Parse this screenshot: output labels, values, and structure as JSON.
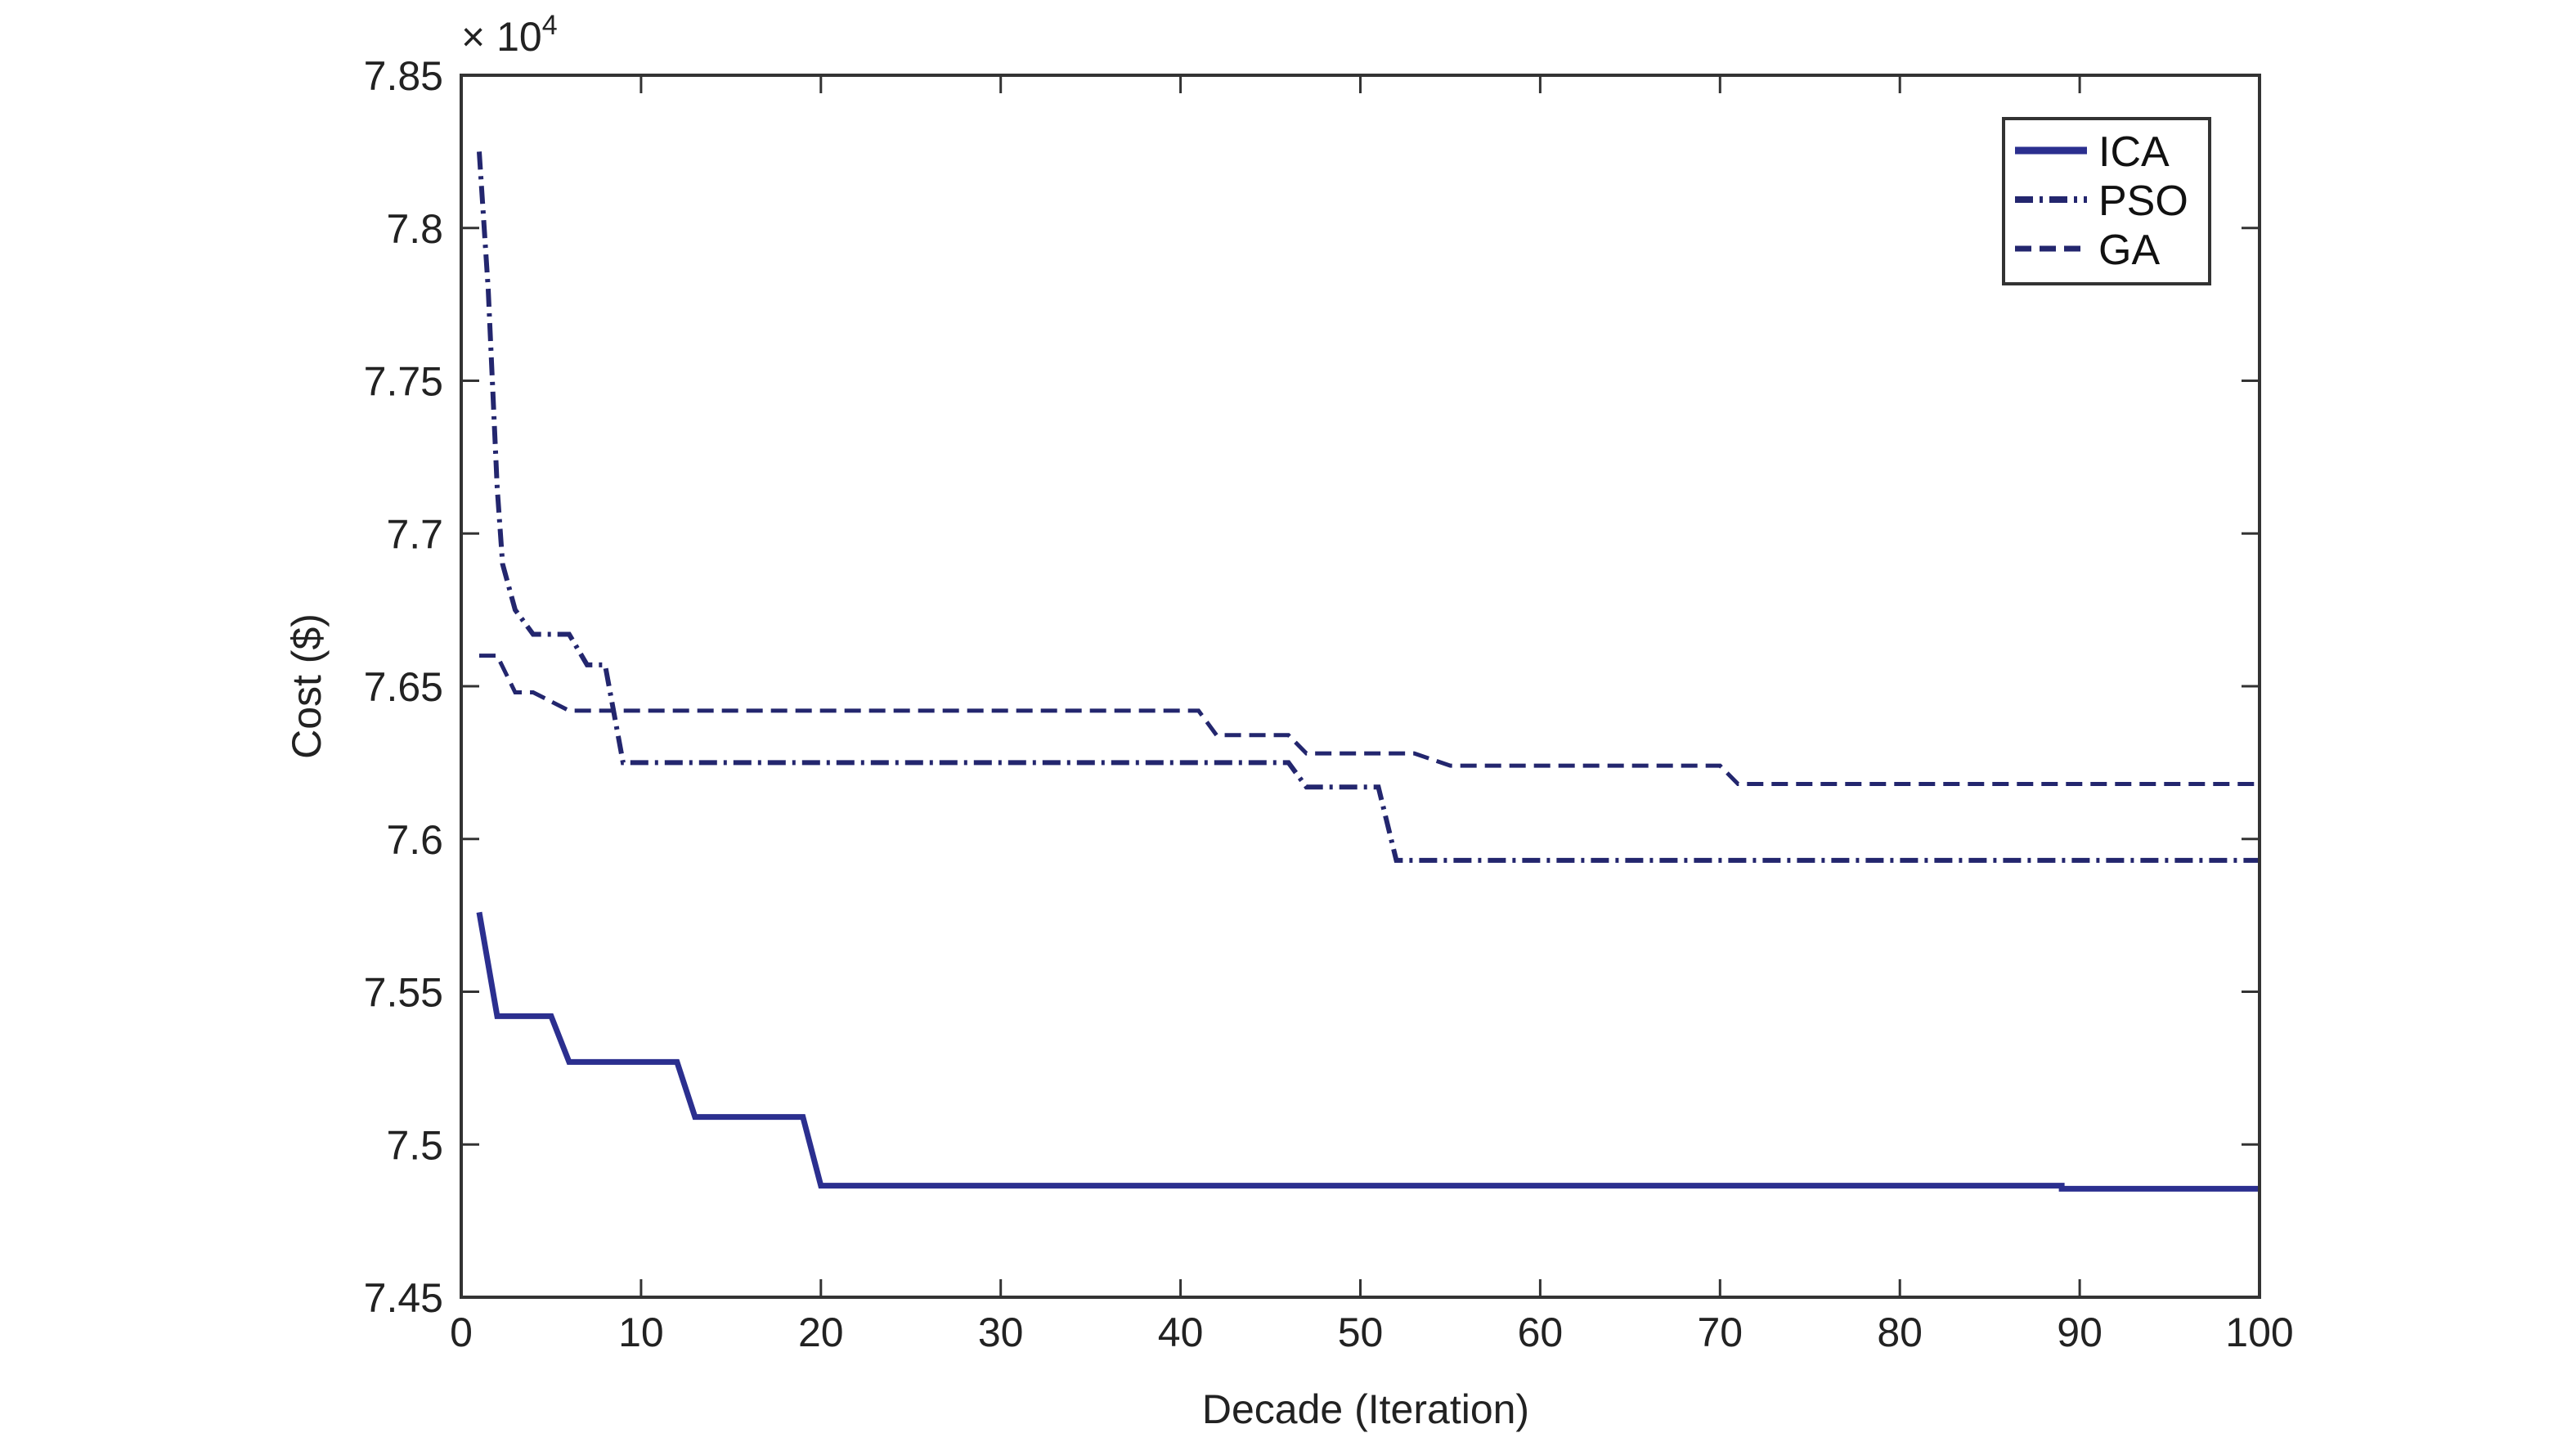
{
  "chart_data": {
    "type": "line",
    "title": "",
    "xlabel": "Decade (Iteration)",
    "ylabel": "Cost ($)",
    "y_multiplier_label": "× 10",
    "y_multiplier_exponent": "4",
    "xlim": [
      0,
      100
    ],
    "ylim": [
      7.45,
      7.85
    ],
    "xticks": [
      "0",
      "10",
      "20",
      "30",
      "40",
      "50",
      "60",
      "70",
      "80",
      "90",
      "100"
    ],
    "yticks": [
      "7.45",
      "7.5",
      "7.55",
      "7.6",
      "7.65",
      "7.7",
      "7.75",
      "7.8",
      "7.85"
    ],
    "grid": false,
    "legend_position": "top-right",
    "series": [
      {
        "name": "ICA",
        "style": "solid",
        "color": "#2b2f8f",
        "points": [
          [
            1,
            7.576
          ],
          [
            2,
            7.542
          ],
          [
            5,
            7.542
          ],
          [
            6,
            7.527
          ],
          [
            12,
            7.527
          ],
          [
            13,
            7.509
          ],
          [
            19,
            7.509
          ],
          [
            20,
            7.4865
          ],
          [
            89,
            7.4865
          ],
          [
            89,
            7.4855
          ],
          [
            100,
            7.4855
          ]
        ]
      },
      {
        "name": "PSO",
        "style": "dashdot",
        "color": "#23266e",
        "points": [
          [
            1,
            7.825
          ],
          [
            1.5,
            7.78
          ],
          [
            2,
            7.715
          ],
          [
            2.3,
            7.69
          ],
          [
            3,
            7.675
          ],
          [
            4,
            7.667
          ],
          [
            6,
            7.667
          ],
          [
            7,
            7.657
          ],
          [
            8,
            7.657
          ],
          [
            9,
            7.625
          ],
          [
            46,
            7.625
          ],
          [
            47,
            7.617
          ],
          [
            51,
            7.617
          ],
          [
            52,
            7.593
          ],
          [
            100,
            7.593
          ]
        ]
      },
      {
        "name": "GA",
        "style": "dashed",
        "color": "#23266e",
        "points": [
          [
            1,
            7.66
          ],
          [
            2,
            7.66
          ],
          [
            3,
            7.648
          ],
          [
            4,
            7.648
          ],
          [
            5,
            7.645
          ],
          [
            6,
            7.642
          ],
          [
            41,
            7.642
          ],
          [
            42,
            7.634
          ],
          [
            46,
            7.634
          ],
          [
            47,
            7.628
          ],
          [
            53,
            7.628
          ],
          [
            55,
            7.624
          ],
          [
            70,
            7.624
          ],
          [
            71,
            7.618
          ],
          [
            100,
            7.618
          ]
        ]
      }
    ]
  }
}
